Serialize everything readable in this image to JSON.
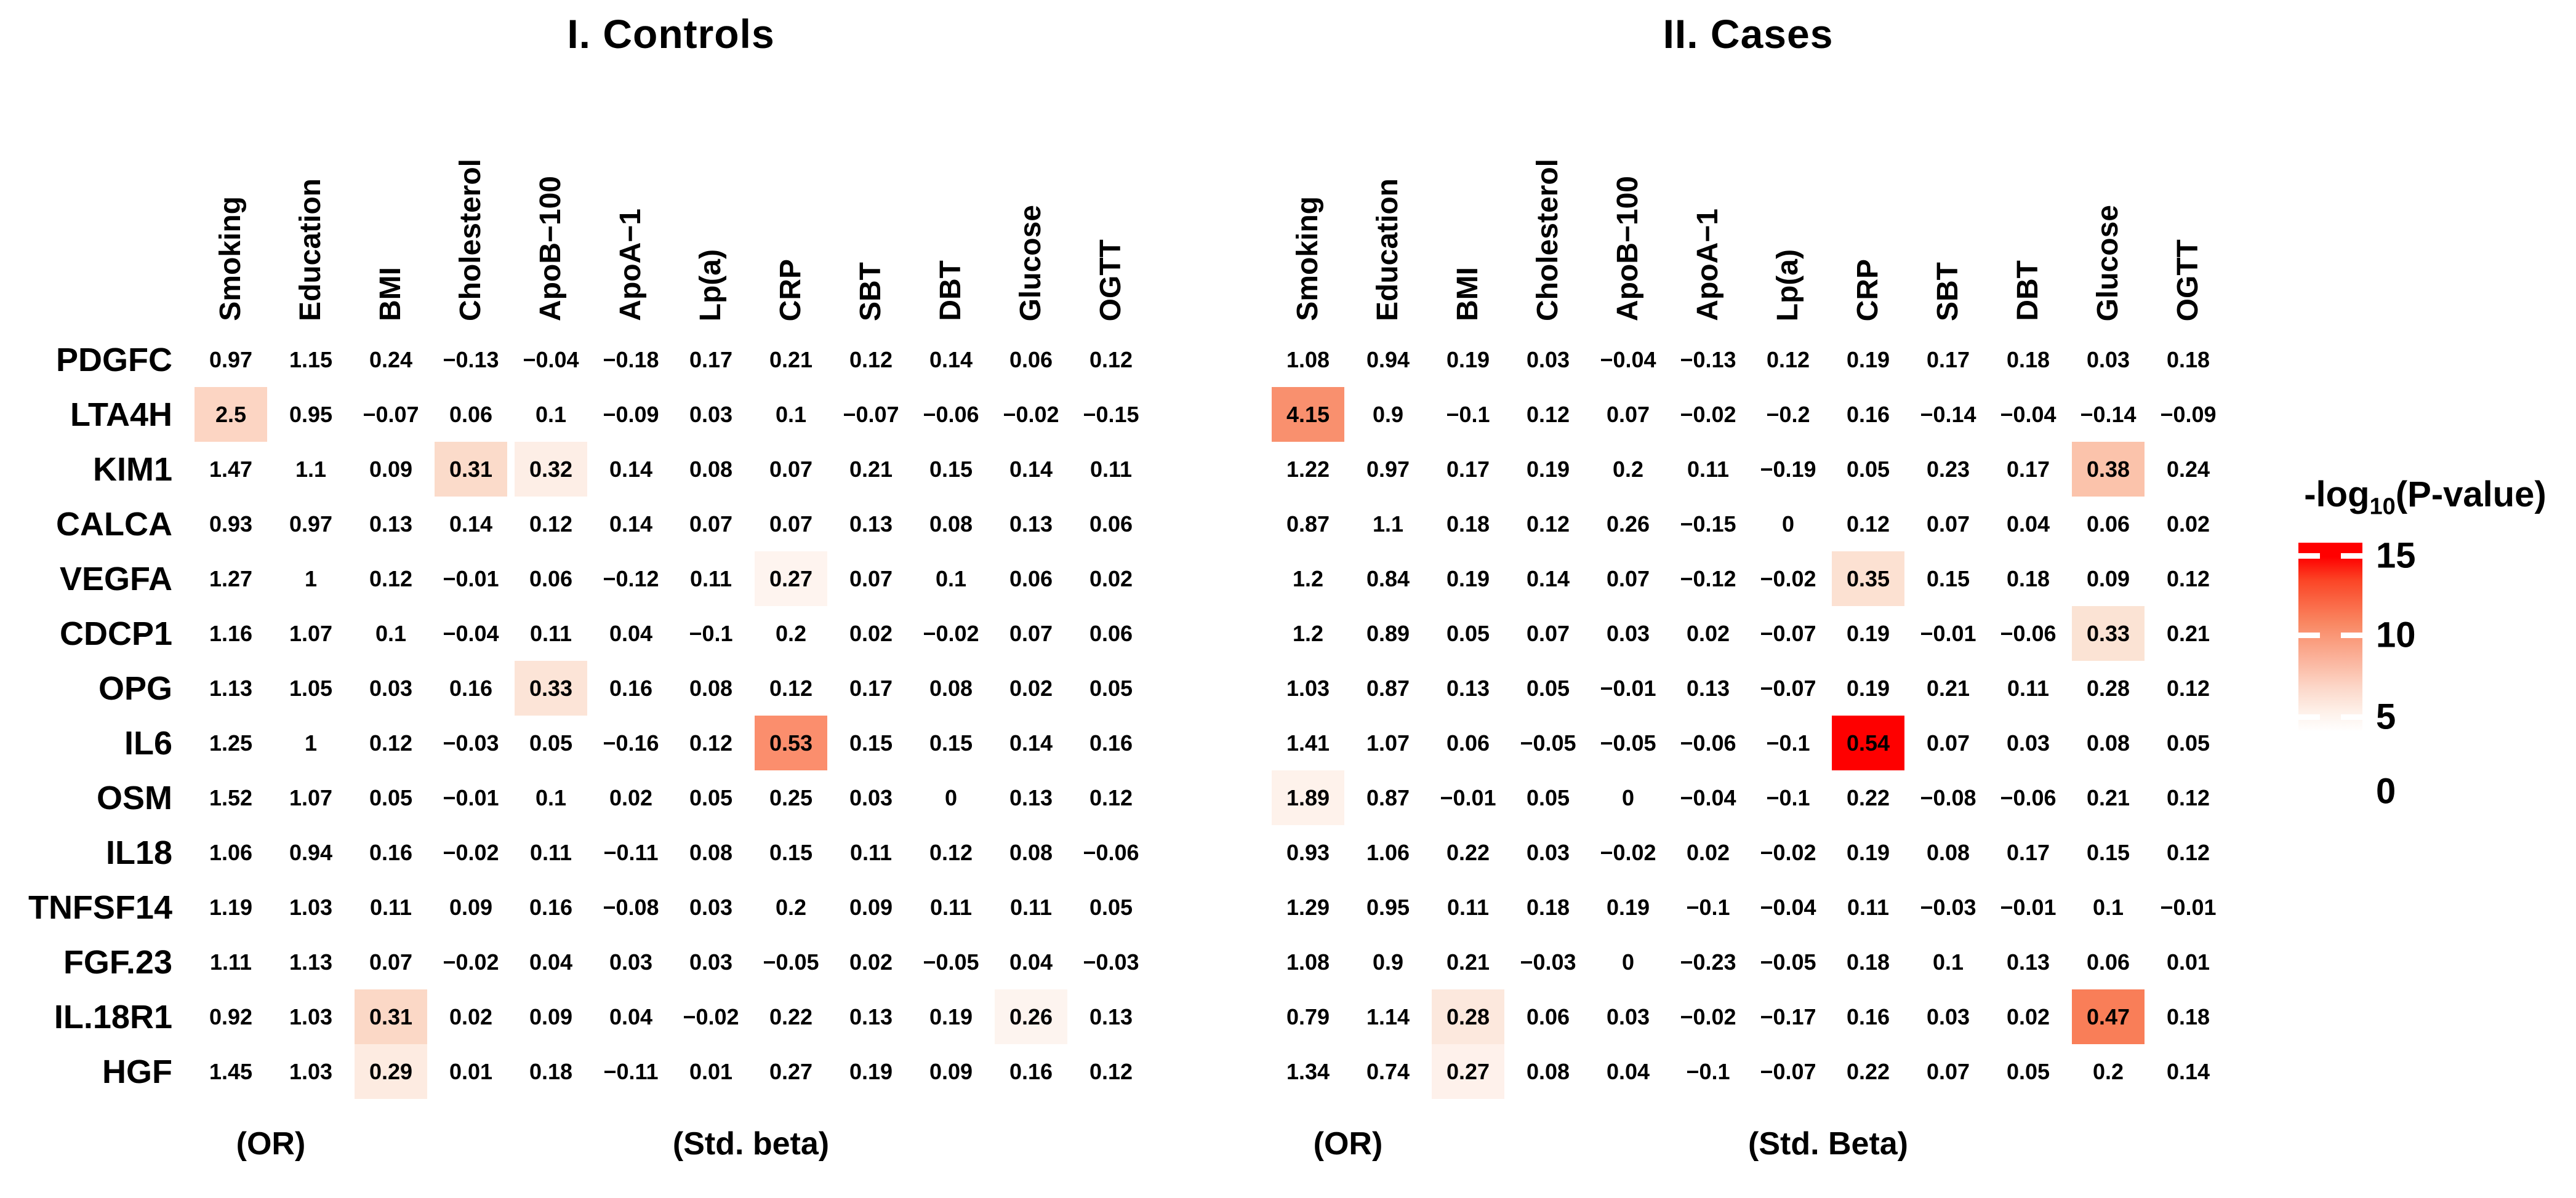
{
  "chart_data": [
    {
      "type": "heatmap",
      "title": "I. Controls",
      "row_labels_visible": true,
      "columns": [
        "Smoking",
        "Education",
        "BMI",
        "Cholesterol",
        "ApoB−100",
        "ApoA−1",
        "Lp(a)",
        "CRP",
        "SBT",
        "DBT",
        "Glucose",
        "OGTT"
      ],
      "rows": [
        "PDGFC",
        "LTA4H",
        "KIM1",
        "CALCA",
        "VEGFA",
        "CDCP1",
        "OPG",
        "IL6",
        "OSM",
        "IL18",
        "TNFSF14",
        "FGF.23",
        "IL.18R1",
        "HGF"
      ],
      "footer_or": "(OR)",
      "footer_beta": "(Std. beta)",
      "cell_fill_meaning": "-log10(P-value), white = 0, red = 15",
      "series": [
        {
          "label": "PDGFC",
          "values": [
            "0.97",
            "1.15",
            "0.24",
            "−0.13",
            "−0.04",
            "−0.18",
            "0.17",
            "0.21",
            "0.12",
            "0.14",
            "0.06",
            "0.12"
          ],
          "bg": [
            "",
            "",
            "",
            "",
            "",
            "",
            "",
            "",
            "",
            "",
            "",
            ""
          ]
        },
        {
          "label": "LTA4H",
          "values": [
            "2.5",
            "0.95",
            "−0.07",
            "0.06",
            "0.1",
            "−0.09",
            "0.03",
            "0.1",
            "−0.07",
            "−0.06",
            "−0.02",
            "−0.15"
          ],
          "bg": [
            "#FCD5C3",
            "",
            "",
            "",
            "",
            "",
            "",
            "",
            "",
            "",
            "",
            ""
          ]
        },
        {
          "label": "KIM1",
          "values": [
            "1.47",
            "1.1",
            "0.09",
            "0.31",
            "0.32",
            "0.14",
            "0.08",
            "0.07",
            "0.21",
            "0.15",
            "0.14",
            "0.11"
          ],
          "bg": [
            "",
            "",
            "",
            "#FBDBCA",
            "#FDEEE6",
            "",
            "",
            "",
            "",
            "",
            "",
            ""
          ]
        },
        {
          "label": "CALCA",
          "values": [
            "0.93",
            "0.97",
            "0.13",
            "0.14",
            "0.12",
            "0.14",
            "0.07",
            "0.07",
            "0.13",
            "0.08",
            "0.13",
            "0.06"
          ],
          "bg": [
            "",
            "",
            "",
            "",
            "",
            "",
            "",
            "",
            "",
            "",
            "",
            ""
          ]
        },
        {
          "label": "VEGFA",
          "values": [
            "1.27",
            "1",
            "0.12",
            "−0.01",
            "0.06",
            "−0.12",
            "0.11",
            "0.27",
            "0.07",
            "0.1",
            "0.06",
            "0.02"
          ],
          "bg": [
            "",
            "",
            "",
            "",
            "",
            "",
            "",
            "#FEF4EF",
            "",
            "",
            "",
            ""
          ]
        },
        {
          "label": "CDCP1",
          "values": [
            "1.16",
            "1.07",
            "0.1",
            "−0.04",
            "0.11",
            "0.04",
            "−0.1",
            "0.2",
            "0.02",
            "−0.02",
            "0.07",
            "0.06"
          ],
          "bg": [
            "",
            "",
            "",
            "",
            "",
            "",
            "",
            "",
            "",
            "",
            "",
            ""
          ]
        },
        {
          "label": "OPG",
          "values": [
            "1.13",
            "1.05",
            "0.03",
            "0.16",
            "0.33",
            "0.16",
            "0.08",
            "0.12",
            "0.17",
            "0.08",
            "0.02",
            "0.05"
          ],
          "bg": [
            "",
            "",
            "",
            "",
            "#FCE4D7",
            "",
            "",
            "",
            "",
            "",
            "",
            ""
          ]
        },
        {
          "label": "IL6",
          "values": [
            "1.25",
            "1",
            "0.12",
            "−0.03",
            "0.05",
            "−0.16",
            "0.12",
            "0.53",
            "0.15",
            "0.15",
            "0.14",
            "0.16"
          ],
          "bg": [
            "",
            "",
            "",
            "",
            "",
            "",
            "",
            "#FB8E6D",
            "",
            "",
            "",
            ""
          ]
        },
        {
          "label": "OSM",
          "values": [
            "1.52",
            "1.07",
            "0.05",
            "−0.01",
            "0.1",
            "0.02",
            "0.05",
            "0.25",
            "0.03",
            "0",
            "0.13",
            "0.12"
          ],
          "bg": [
            "",
            "",
            "",
            "",
            "",
            "",
            "",
            "",
            "",
            "",
            "",
            ""
          ]
        },
        {
          "label": "IL18",
          "values": [
            "1.06",
            "0.94",
            "0.16",
            "−0.02",
            "0.11",
            "−0.11",
            "0.08",
            "0.15",
            "0.11",
            "0.12",
            "0.08",
            "−0.06"
          ],
          "bg": [
            "",
            "",
            "",
            "",
            "",
            "",
            "",
            "",
            "",
            "",
            "",
            ""
          ]
        },
        {
          "label": "TNFSF14",
          "values": [
            "1.19",
            "1.03",
            "0.11",
            "0.09",
            "0.16",
            "−0.08",
            "0.03",
            "0.2",
            "0.09",
            "0.11",
            "0.11",
            "0.05"
          ],
          "bg": [
            "",
            "",
            "",
            "",
            "",
            "",
            "",
            "",
            "",
            "",
            "",
            ""
          ]
        },
        {
          "label": "FGF.23",
          "values": [
            "1.11",
            "1.13",
            "0.07",
            "−0.02",
            "0.04",
            "0.03",
            "0.03",
            "−0.05",
            "0.02",
            "−0.05",
            "0.04",
            "−0.03"
          ],
          "bg": [
            "",
            "",
            "",
            "",
            "",
            "",
            "",
            "",
            "",
            "",
            "",
            ""
          ]
        },
        {
          "label": "IL.18R1",
          "values": [
            "0.92",
            "1.03",
            "0.31",
            "0.02",
            "0.09",
            "0.04",
            "−0.02",
            "0.22",
            "0.13",
            "0.19",
            "0.26",
            "0.13"
          ],
          "bg": [
            "",
            "",
            "#FBD8C6",
            "",
            "",
            "",
            "",
            "",
            "",
            "",
            "#FDF4EF",
            ""
          ]
        },
        {
          "label": "HGF",
          "values": [
            "1.45",
            "1.03",
            "0.29",
            "0.01",
            "0.18",
            "−0.11",
            "0.01",
            "0.27",
            "0.19",
            "0.09",
            "0.16",
            "0.12"
          ],
          "bg": [
            "",
            "",
            "#FDEBE1",
            "",
            "",
            "",
            "",
            "",
            "",
            "",
            "",
            ""
          ]
        }
      ]
    },
    {
      "type": "heatmap",
      "title": "II. Cases",
      "row_labels_visible": false,
      "columns": [
        "Smoking",
        "Education",
        "BMI",
        "Cholesterol",
        "ApoB−100",
        "ApoA−1",
        "Lp(a)",
        "CRP",
        "SBT",
        "DBT",
        "Glucose",
        "OGTT"
      ],
      "rows": [
        "PDGFC",
        "LTA4H",
        "KIM1",
        "CALCA",
        "VEGFA",
        "CDCP1",
        "OPG",
        "IL6",
        "OSM",
        "IL18",
        "TNFSF14",
        "FGF.23",
        "IL.18R1",
        "HGF"
      ],
      "footer_or": "(OR)",
      "footer_beta": "(Std. Beta)",
      "cell_fill_meaning": "-log10(P-value), white = 0, red = 15",
      "series": [
        {
          "label": "PDGFC",
          "values": [
            "1.08",
            "0.94",
            "0.19",
            "0.03",
            "−0.04",
            "−0.13",
            "0.12",
            "0.19",
            "0.17",
            "0.18",
            "0.03",
            "0.18"
          ],
          "bg": [
            "",
            "",
            "",
            "",
            "",
            "",
            "",
            "",
            "",
            "",
            "",
            ""
          ]
        },
        {
          "label": "LTA4H",
          "values": [
            "4.15",
            "0.9",
            "−0.1",
            "0.12",
            "0.07",
            "−0.02",
            "−0.2",
            "0.16",
            "−0.14",
            "−0.04",
            "−0.14",
            "−0.09"
          ],
          "bg": [
            "#F9906E",
            "",
            "",
            "",
            "",
            "",
            "",
            "",
            "",
            "",
            "",
            ""
          ]
        },
        {
          "label": "KIM1",
          "values": [
            "1.22",
            "0.97",
            "0.17",
            "0.19",
            "0.2",
            "0.11",
            "−0.19",
            "0.05",
            "0.23",
            "0.17",
            "0.38",
            "0.24"
          ],
          "bg": [
            "",
            "",
            "",
            "",
            "",
            "",
            "",
            "",
            "",
            "",
            "#FBC3AB",
            ""
          ]
        },
        {
          "label": "CALCA",
          "values": [
            "0.87",
            "1.1",
            "0.18",
            "0.12",
            "0.26",
            "−0.15",
            "0",
            "0.12",
            "0.07",
            "0.04",
            "0.06",
            "0.02"
          ],
          "bg": [
            "",
            "",
            "",
            "",
            "",
            "",
            "",
            "",
            "",
            "",
            "",
            ""
          ]
        },
        {
          "label": "VEGFA",
          "values": [
            "1.2",
            "0.84",
            "0.19",
            "0.14",
            "0.07",
            "−0.12",
            "−0.02",
            "0.35",
            "0.15",
            "0.18",
            "0.09",
            "0.12"
          ],
          "bg": [
            "",
            "",
            "",
            "",
            "",
            "",
            "",
            "#FCE1D2",
            "",
            "",
            "",
            ""
          ]
        },
        {
          "label": "CDCP1",
          "values": [
            "1.2",
            "0.89",
            "0.05",
            "0.07",
            "0.03",
            "0.02",
            "−0.07",
            "0.19",
            "−0.01",
            "−0.06",
            "0.33",
            "0.21"
          ],
          "bg": [
            "",
            "",
            "",
            "",
            "",
            "",
            "",
            "",
            "",
            "",
            "#FBE3D4",
            ""
          ]
        },
        {
          "label": "OPG",
          "values": [
            "1.03",
            "0.87",
            "0.13",
            "0.05",
            "−0.01",
            "0.13",
            "−0.07",
            "0.19",
            "0.21",
            "0.11",
            "0.28",
            "0.12"
          ],
          "bg": [
            "",
            "",
            "",
            "",
            "",
            "",
            "",
            "",
            "",
            "",
            "",
            ""
          ]
        },
        {
          "label": "IL6",
          "values": [
            "1.41",
            "1.07",
            "0.06",
            "−0.05",
            "−0.05",
            "−0.06",
            "−0.1",
            "0.54",
            "0.07",
            "0.03",
            "0.08",
            "0.05"
          ],
          "bg": [
            "",
            "",
            "",
            "",
            "",
            "",
            "",
            "#FE0000",
            "",
            "",
            "",
            ""
          ]
        },
        {
          "label": "OSM",
          "values": [
            "1.89",
            "0.87",
            "−0.01",
            "0.05",
            "0",
            "−0.04",
            "−0.1",
            "0.22",
            "−0.08",
            "−0.06",
            "0.21",
            "0.12"
          ],
          "bg": [
            "#FEF2EB",
            "",
            "",
            "",
            "",
            "",
            "",
            "",
            "",
            "",
            "",
            ""
          ]
        },
        {
          "label": "IL18",
          "values": [
            "0.93",
            "1.06",
            "0.22",
            "0.03",
            "−0.02",
            "0.02",
            "−0.02",
            "0.19",
            "0.08",
            "0.17",
            "0.15",
            "0.12"
          ],
          "bg": [
            "",
            "",
            "",
            "",
            "",
            "",
            "",
            "",
            "",
            "",
            "",
            ""
          ]
        },
        {
          "label": "TNFSF14",
          "values": [
            "1.29",
            "0.95",
            "0.11",
            "0.18",
            "0.19",
            "−0.1",
            "−0.04",
            "0.11",
            "−0.03",
            "−0.01",
            "0.1",
            "−0.01"
          ],
          "bg": [
            "",
            "",
            "",
            "",
            "",
            "",
            "",
            "",
            "",
            "",
            "",
            ""
          ]
        },
        {
          "label": "FGF.23",
          "values": [
            "1.08",
            "0.9",
            "0.21",
            "−0.03",
            "0",
            "−0.23",
            "−0.05",
            "0.18",
            "0.1",
            "0.13",
            "0.06",
            "0.01"
          ],
          "bg": [
            "",
            "",
            "",
            "",
            "",
            "",
            "",
            "",
            "",
            "",
            "",
            ""
          ]
        },
        {
          "label": "IL.18R1",
          "values": [
            "0.79",
            "1.14",
            "0.28",
            "0.06",
            "0.03",
            "−0.02",
            "−0.17",
            "0.16",
            "0.03",
            "0.02",
            "0.47",
            "0.18"
          ],
          "bg": [
            "",
            "",
            "#FCE8DD",
            "",
            "",
            "",
            "",
            "",
            "",
            "",
            "#F97E58",
            ""
          ]
        },
        {
          "label": "HGF",
          "values": [
            "1.34",
            "0.74",
            "0.27",
            "0.08",
            "0.04",
            "−0.1",
            "−0.07",
            "0.22",
            "0.07",
            "0.05",
            "0.2",
            "0.14"
          ],
          "bg": [
            "",
            "",
            "#FEF1EB",
            "",
            "",
            "",
            "",
            "",
            "",
            "",
            "",
            ""
          ]
        }
      ]
    }
  ],
  "legend": {
    "title_prefix": "-log",
    "title_sub": "10",
    "title_suffix": "(P-value)",
    "ticks": [
      "15",
      "10",
      "5",
      "0"
    ],
    "bar_top_color": "#FF0000",
    "bar_bottom_color": "#FFFFFF"
  }
}
